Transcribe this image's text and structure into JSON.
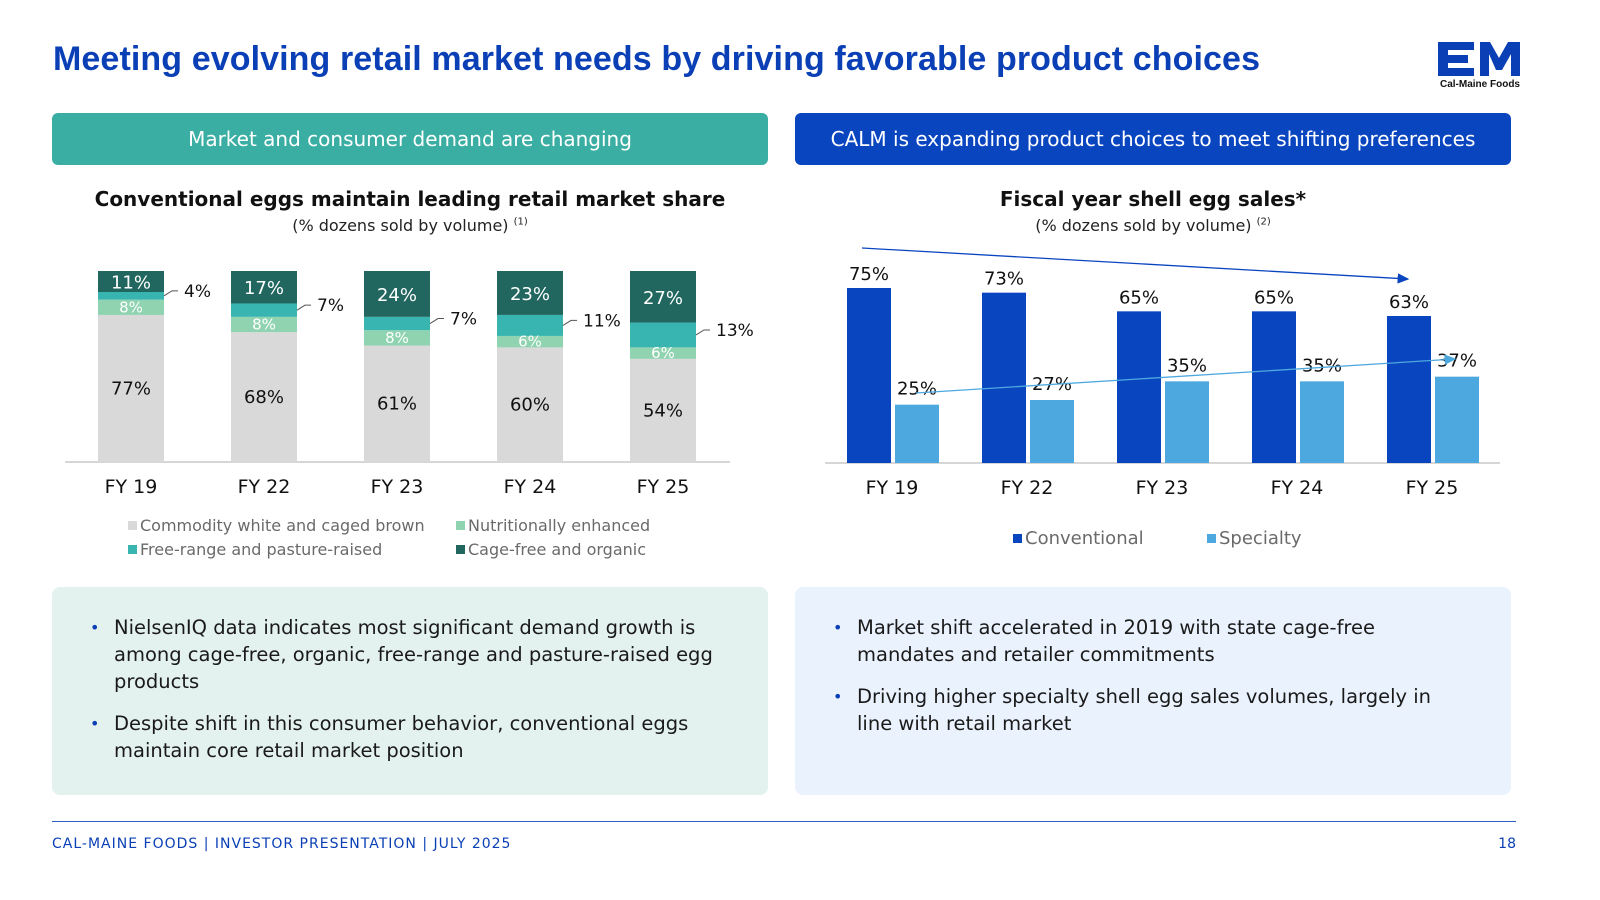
{
  "header": {
    "title": "Meeting evolving retail market needs by driving favorable product choices",
    "logo_letters": "CM",
    "logo_name": "Cal-Maine Foods"
  },
  "left_panel": {
    "banner": "Market and consumer demand are changing",
    "chart_title": "Conventional eggs maintain leading retail market share",
    "chart_subtitle": "(% dozens sold by volume)",
    "chart_footnote": "(1)",
    "bullets": [
      "NielsenIQ data indicates most significant demand growth is among cage-free, organic, free-range and pasture-raised egg products",
      "Despite shift in this consumer behavior, conventional eggs maintain core retail market position"
    ]
  },
  "right_panel": {
    "banner": "CALM is expanding product choices to meet shifting preferences",
    "chart_title": "Fiscal year shell egg sales*",
    "chart_subtitle": "(% dozens sold by volume)",
    "chart_footnote": "(2)",
    "bullets": [
      "Market shift accelerated in 2019 with state cage-free mandates and retailer commitments",
      "Driving higher specialty shell egg sales volumes, largely in line with retail market"
    ]
  },
  "footer": {
    "text": "CAL-MAINE FOODS | INVESTOR PRESENTATION | JULY 2025",
    "page": "18"
  },
  "colors": {
    "brand_blue": "#0a3fb5",
    "teal": "#3aaea3",
    "commodity": "#d9d9d9",
    "nutritional": "#8fd3b0",
    "free_range": "#38b5b0",
    "cage_free": "#22675f",
    "conventional": "#0a45c0",
    "specialty": "#4da8e0"
  },
  "chart_data": [
    {
      "type": "bar",
      "stacked": true,
      "title": "Conventional eggs maintain leading retail market share",
      "subtitle": "(% dozens sold by volume)",
      "categories": [
        "FY 19",
        "FY 22",
        "FY 23",
        "FY 24",
        "FY 25"
      ],
      "series": [
        {
          "name": "Commodity white and caged brown",
          "values": [
            77,
            68,
            61,
            60,
            54
          ],
          "color": "#d9d9d9"
        },
        {
          "name": "Nutritionally enhanced",
          "values": [
            8,
            8,
            8,
            6,
            6
          ],
          "color": "#8fd3b0"
        },
        {
          "name": "Free-range and pasture-raised",
          "values": [
            4,
            7,
            7,
            11,
            13
          ],
          "color": "#38b5b0"
        },
        {
          "name": "Cage-free and organic",
          "values": [
            11,
            17,
            24,
            23,
            27
          ],
          "color": "#22675f"
        }
      ],
      "unit": "%",
      "ylim": [
        0,
        100
      ]
    },
    {
      "type": "bar",
      "title": "Fiscal year shell egg sales*",
      "subtitle": "(% dozens sold by volume)",
      "categories": [
        "FY 19",
        "FY 22",
        "FY 23",
        "FY 24",
        "FY 25"
      ],
      "series": [
        {
          "name": "Conventional",
          "values": [
            75,
            73,
            65,
            65,
            63
          ],
          "color": "#0a45c0"
        },
        {
          "name": "Specialty",
          "values": [
            25,
            27,
            35,
            35,
            37
          ],
          "color": "#4da8e0"
        }
      ],
      "unit": "%",
      "ylim": [
        0,
        75
      ],
      "trend_arrows": [
        "Conventional",
        "Specialty"
      ]
    }
  ]
}
